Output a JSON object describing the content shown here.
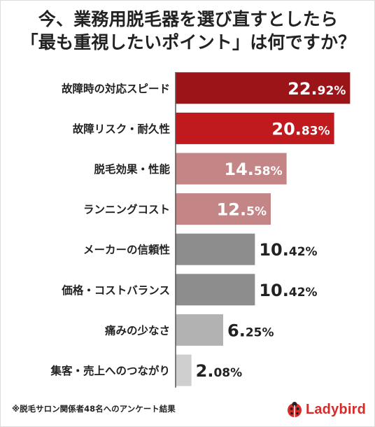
{
  "header": {
    "title_line1": "今、業務用脱毛器を選び直すとしたら",
    "title_line2": "「最も重視したいポイント」は何ですか？"
  },
  "footer": {
    "note": "※脱毛サロン関係者48名へのアンケート結果",
    "logo_text": "Ladybird"
  },
  "colors": {
    "dark_red": "#9a1418",
    "red": "#c01a1e",
    "pink": "#c48587",
    "gray": "#8d8d8d",
    "light_gray": "#b2b2b2",
    "lighter_gray": "#cfcfcf",
    "brand_red": "#d52b2b"
  },
  "chart_data": {
    "type": "bar",
    "orientation": "horizontal",
    "categories": [
      "故障時の対応スピード",
      "故障リスク・耐久性",
      "脱毛効果・性能",
      "ランニングコスト",
      "メーカーの信頼性",
      "価格・コストバランス",
      "痛みの少なさ",
      "集客・売上へのつながり"
    ],
    "values": [
      22.92,
      20.83,
      14.58,
      12.5,
      10.42,
      10.42,
      6.25,
      2.08
    ],
    "value_labels": [
      {
        "int": "22.",
        "dec": "92%"
      },
      {
        "int": "20.",
        "dec": "83%"
      },
      {
        "int": "14.",
        "dec": "58%"
      },
      {
        "int": "12.",
        "dec": "5%"
      },
      {
        "int": "10.",
        "dec": "42%"
      },
      {
        "int": "10.",
        "dec": "42%"
      },
      {
        "int": "6.",
        "dec": "25%"
      },
      {
        "int": "2.",
        "dec": "08%"
      }
    ],
    "bar_colors": [
      "#9a1418",
      "#c01a1e",
      "#c48587",
      "#c48587",
      "#8d8d8d",
      "#8d8d8d",
      "#b2b2b2",
      "#cfcfcf"
    ],
    "xlim": [
      0,
      25
    ],
    "grid": false,
    "legend": "none",
    "title": "",
    "xlabel": "",
    "ylabel": ""
  }
}
